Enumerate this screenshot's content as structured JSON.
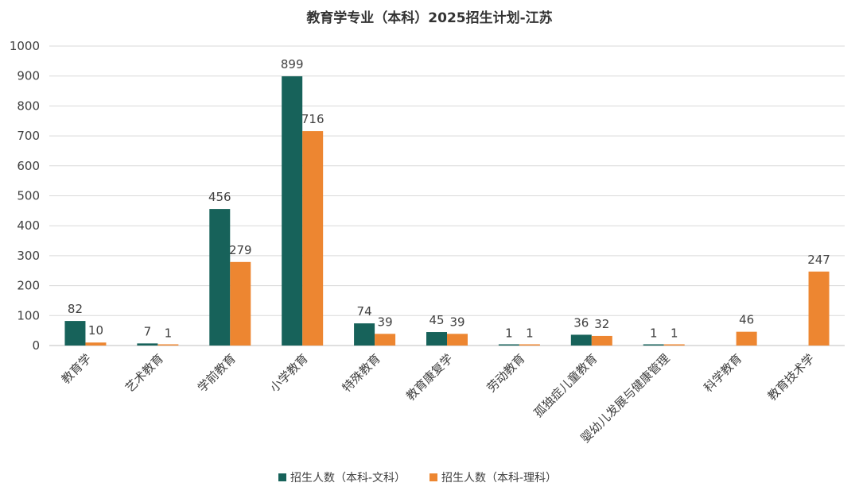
{
  "chart_data": {
    "type": "bar",
    "title": "教育学专业（本科）2025招生计划-江苏",
    "categories": [
      "教育学",
      "艺术教育",
      "学前教育",
      "小学教育",
      "特殊教育",
      "教育康复学",
      "劳动教育",
      "孤独症儿童教育",
      "婴幼儿发展与健康管理",
      "科学教育",
      "教育技术学"
    ],
    "series": [
      {
        "name": "招生人数（本科-文科）",
        "color": "#17625a",
        "values": [
          82,
          7,
          456,
          899,
          74,
          45,
          1,
          36,
          1,
          null,
          null
        ]
      },
      {
        "name": "招生人数（本科-理科）",
        "color": "#ed8631",
        "values": [
          10,
          1,
          279,
          716,
          39,
          39,
          1,
          32,
          1,
          46,
          247
        ]
      }
    ],
    "ylim": [
      0,
      1000
    ],
    "yticks": [
      0,
      100,
      200,
      300,
      400,
      500,
      600,
      700,
      800,
      900,
      1000
    ],
    "grid": true,
    "legend": "bottom",
    "xlabel": "",
    "ylabel": ""
  }
}
